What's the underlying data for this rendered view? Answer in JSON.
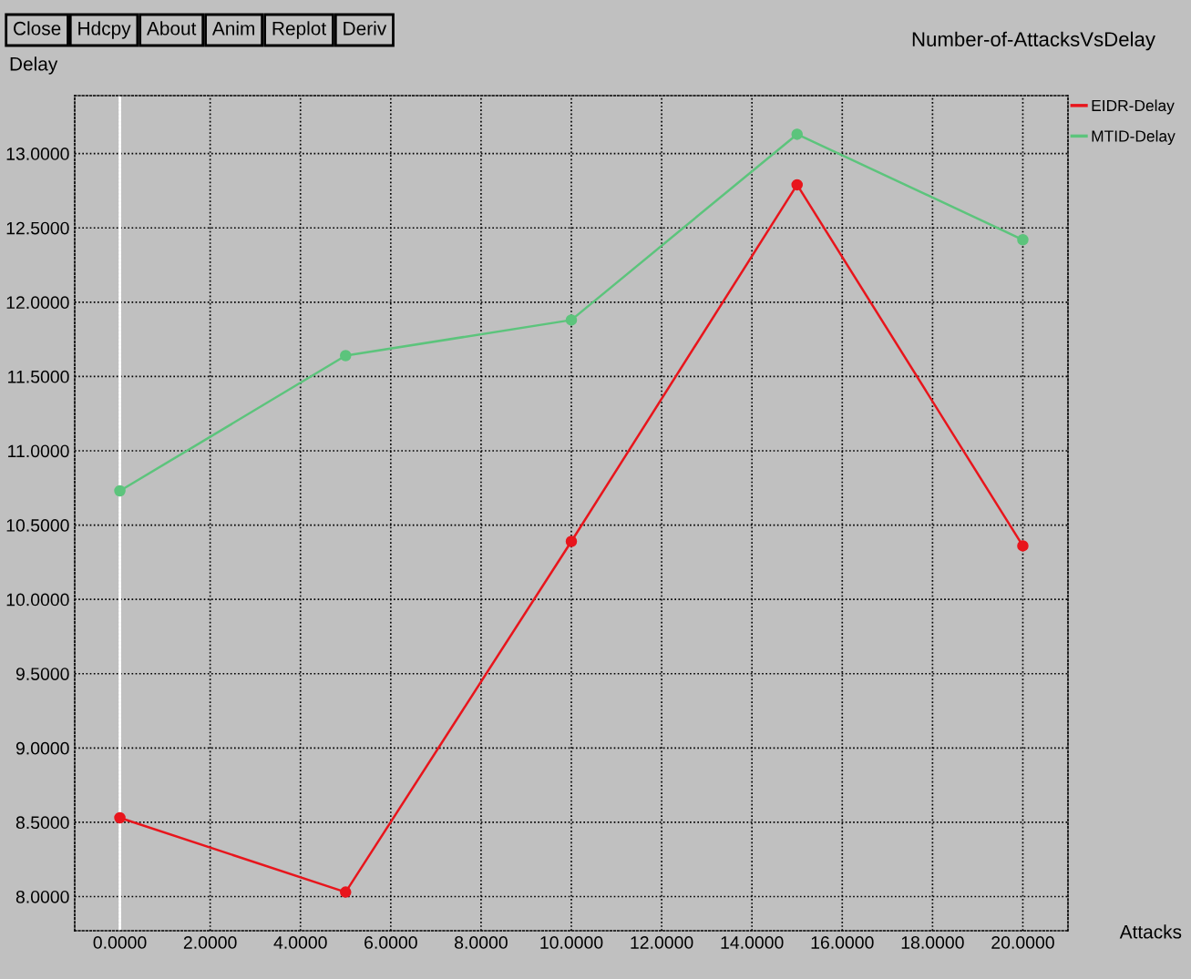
{
  "chart_data": {
    "type": "line",
    "title": "Number-of-AttacksVsDelay",
    "xlabel": "Attacks",
    "ylabel": "Delay",
    "annotations": [
      "Close",
      "Hdcpy",
      "About",
      "Anim",
      "Replot",
      "Deriv"
    ],
    "x": [
      0,
      5,
      10,
      15,
      20
    ],
    "series": [
      {
        "name": "EIDR-Delay",
        "color": "#e8151c",
        "values": [
          8.53,
          8.03,
          10.39,
          12.79,
          10.36
        ]
      },
      {
        "name": "MTID-Delay",
        "color": "#5cc47c",
        "values": [
          10.73,
          11.64,
          11.88,
          13.13,
          12.42
        ]
      }
    ],
    "xlim": [
      -1,
      21
    ],
    "ylim": [
      7.77,
      13.39
    ],
    "xticks": [
      {
        "value": 0,
        "label": "0.0000"
      },
      {
        "value": 2,
        "label": "2.0000"
      },
      {
        "value": 4,
        "label": "4.0000"
      },
      {
        "value": 6,
        "label": "6.0000"
      },
      {
        "value": 8,
        "label": "8.0000"
      },
      {
        "value": 10,
        "label": "10.0000"
      },
      {
        "value": 12,
        "label": "12.0000"
      },
      {
        "value": 14,
        "label": "14.0000"
      },
      {
        "value": 16,
        "label": "16.0000"
      },
      {
        "value": 18,
        "label": "18.0000"
      },
      {
        "value": 20,
        "label": "20.0000"
      }
    ],
    "yticks": [
      {
        "value": 8,
        "label": "8.0000"
      },
      {
        "value": 8.5,
        "label": "8.5000"
      },
      {
        "value": 9,
        "label": "9.0000"
      },
      {
        "value": 9.5,
        "label": "9.5000"
      },
      {
        "value": 10,
        "label": "10.0000"
      },
      {
        "value": 10.5,
        "label": "10.5000"
      },
      {
        "value": 11,
        "label": "11.0000"
      },
      {
        "value": 11.5,
        "label": "11.5000"
      },
      {
        "value": 12,
        "label": "12.0000"
      },
      {
        "value": 12.5,
        "label": "12.5000"
      },
      {
        "value": 13,
        "label": "13.0000"
      }
    ],
    "ref_lines": [
      {
        "axis": "x",
        "value": 0,
        "color": "#ffffff"
      }
    ],
    "grid": true,
    "legend": "top right",
    "marker": "circle",
    "line_style": "solid"
  }
}
